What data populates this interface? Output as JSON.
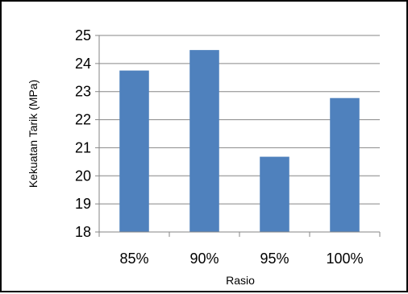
{
  "chart_data": {
    "type": "bar",
    "categories": [
      "85%",
      "90%",
      "95%",
      "100%"
    ],
    "values": [
      23.75,
      24.48,
      20.68,
      22.77
    ],
    "xlabel": "Rasio",
    "ylabel": "Kekuatan Tarik (MPa)",
    "ylim": [
      18,
      25
    ],
    "yticks": [
      18,
      19,
      20,
      21,
      22,
      23,
      24,
      25
    ],
    "grid": true,
    "legend": "none",
    "bar_color": "#4F81BD",
    "gridline_color": "#868686"
  }
}
